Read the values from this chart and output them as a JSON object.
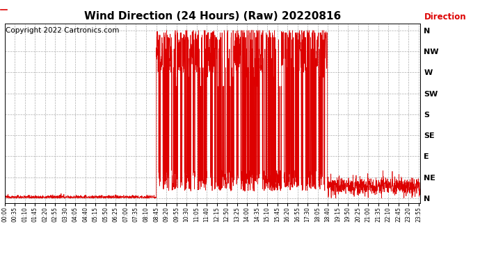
{
  "title": "Wind Direction (24 Hours) (Raw) 20220816",
  "title_fontsize": 11,
  "copyright_text": "Copyright 2022 Cartronics.com",
  "copyright_color": "#000000",
  "copyright_fontsize": 7.5,
  "legend_label": "Direction",
  "legend_color": "#dd0000",
  "line_color": "#dd0000",
  "bg_color": "#ffffff",
  "grid_color": "#999999",
  "y_labels": [
    "N",
    "NE",
    "E",
    "SE",
    "S",
    "SW",
    "W",
    "NW",
    "N"
  ],
  "y_values": [
    0,
    45,
    90,
    135,
    180,
    225,
    270,
    315,
    360
  ],
  "ylim": [
    -10,
    375
  ],
  "x_tick_labels": [
    "00:00",
    "00:35",
    "01:10",
    "01:45",
    "02:20",
    "02:55",
    "03:30",
    "04:05",
    "04:40",
    "05:15",
    "05:50",
    "06:25",
    "07:00",
    "07:35",
    "08:10",
    "08:45",
    "09:20",
    "09:55",
    "10:30",
    "11:05",
    "11:40",
    "12:15",
    "12:50",
    "13:25",
    "14:00",
    "14:35",
    "15:10",
    "15:45",
    "16:20",
    "16:55",
    "17:30",
    "18:05",
    "18:40",
    "19:15",
    "19:50",
    "20:25",
    "21:00",
    "21:35",
    "22:10",
    "22:45",
    "23:20",
    "23:55"
  ],
  "fig_width": 6.9,
  "fig_height": 3.75,
  "dpi": 100
}
